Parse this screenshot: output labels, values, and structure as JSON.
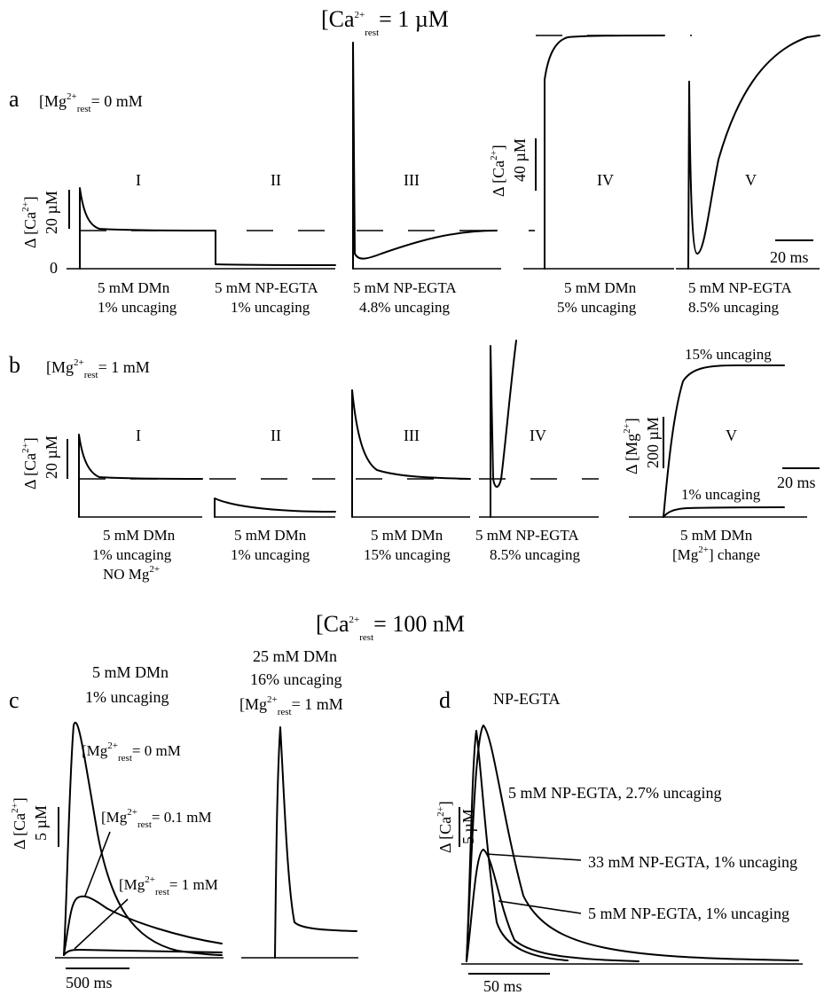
{
  "headings": {
    "top": {
      "base": "[Ca",
      "sup": "2+",
      "sub": "rest",
      "tail": "= 1 µM"
    },
    "middle": {
      "base": "[Ca",
      "sup": "2+",
      "sub": "rest",
      "tail": "= 100 nM"
    }
  },
  "panel_a": {
    "letter": "a",
    "condition": {
      "base": "[Mg",
      "sup": "2+",
      "sub": "rest",
      "tail": "= 0 mM"
    },
    "ylabel": {
      "base": "Δ [Ca",
      "sup": "2+",
      "tail": "]"
    },
    "ylabel_right": {
      "base": "Δ [Ca",
      "sup": "2+",
      "tail": "]"
    },
    "scale_left": "20 µM",
    "scale_right": "40 µM",
    "time_scale": "20 ms",
    "zero_label": "0",
    "subpanels": [
      {
        "roman": "I",
        "line1": "5 mM DMn",
        "line2": "1% uncaging"
      },
      {
        "roman": "II",
        "line1": "5 mM NP-EGTA",
        "line2": "1% uncaging"
      },
      {
        "roman": "III",
        "line1": "5 mM NP-EGTA",
        "line2": "4.8% uncaging"
      },
      {
        "roman": "IV",
        "line1": "5 mM DMn",
        "line2": "5% uncaging"
      },
      {
        "roman": "V",
        "line1": "5 mM NP-EGTA",
        "line2": "8.5% uncaging"
      }
    ]
  },
  "panel_b": {
    "letter": "b",
    "condition": {
      "base": "[Mg",
      "sup": "2+",
      "sub": "rest",
      "tail": "= 1 mM"
    },
    "ylabel": {
      "base": "Δ [Ca",
      "sup": "2+",
      "tail": "]"
    },
    "ylabel_mg": {
      "base": "Δ [Mg",
      "sup": "2+",
      "tail": "]"
    },
    "scale_left": "20 µM",
    "scale_mg": "200 µM",
    "time_scale": "20 ms",
    "subpanels": [
      {
        "roman": "I",
        "line1": "5 mM DMn",
        "line2": "1% uncaging",
        "line3_base": "NO Mg",
        "line3_sup": "2+"
      },
      {
        "roman": "II",
        "line1": "5 mM DMn",
        "line2": "1% uncaging"
      },
      {
        "roman": "III",
        "line1": "5 mM DMn",
        "line2": "15% uncaging"
      },
      {
        "roman": "IV",
        "line1": "5 mM NP-EGTA",
        "line2": "8.5% uncaging"
      },
      {
        "roman": "V",
        "line1": "5 mM DMn",
        "line2_base": "[Mg",
        "line2_sup": "2+",
        "line2_tail": "] change"
      }
    ],
    "trace_labels": [
      "15% uncaging",
      "1% uncaging"
    ]
  },
  "panel_c": {
    "letter": "c",
    "title_left": [
      "5 mM DMn",
      "1% uncaging"
    ],
    "title_right": [
      "25 mM DMn",
      "16% uncaging"
    ],
    "title_right_cond": {
      "base": "[Mg",
      "sup": "2+",
      "sub": "rest",
      "tail": "= 1 mM"
    },
    "ylabel": {
      "base": "Δ [Ca",
      "sup": "2+",
      "tail": "]"
    },
    "scale": "5 µM",
    "time_scale": "500 ms",
    "trace_labels": [
      {
        "base": "[Mg",
        "sup": "2+",
        "sub": "rest",
        "tail": "= 0 mM"
      },
      {
        "base": "[Mg",
        "sup": "2+",
        "sub": "rest",
        "tail": "= 0.1 mM"
      },
      {
        "base": "[Mg",
        "sup": "2+",
        "sub": "rest",
        "tail": "= 1 mM"
      }
    ]
  },
  "panel_d": {
    "letter": "d",
    "title": "NP-EGTA",
    "ylabel": {
      "base": "Δ [Ca",
      "sup": "2+",
      "tail": "]"
    },
    "scale": "5 µM",
    "time_scale": "50 ms",
    "trace_labels": [
      "5 mM NP-EGTA, 2.7% uncaging",
      "33 mM NP-EGTA, 1% uncaging",
      "5 mM NP-EGTA, 1% uncaging"
    ]
  }
}
